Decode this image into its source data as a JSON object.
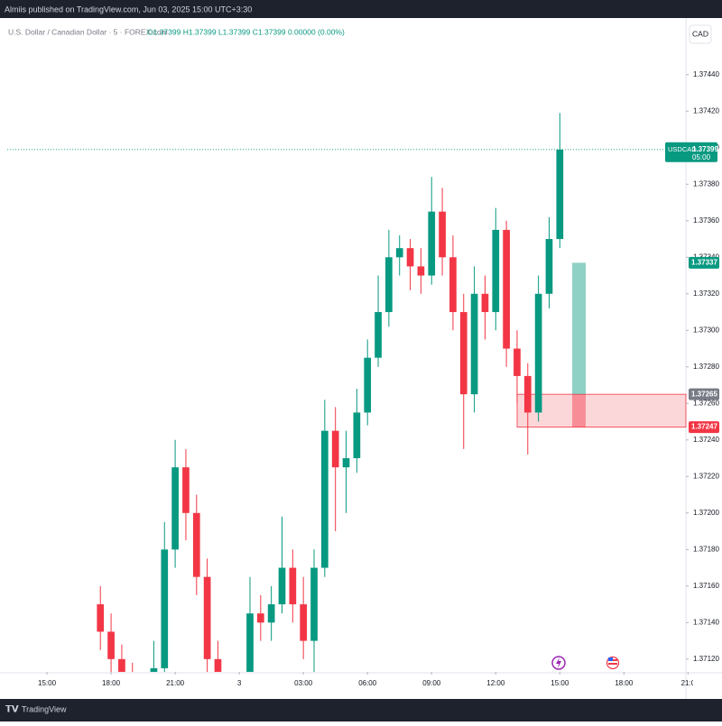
{
  "header": {
    "published": "Almiis published on TradingView.com, Jun 03, 2025 15:00 UTC+3:30"
  },
  "footer": {
    "brand": "TradingView"
  },
  "chart_data": {
    "type": "candlestick",
    "symbol_title": "U.S. Dollar / Canadian Dollar · 5 · FOREX.com",
    "ohlc_legend": "O1.37399 H1.37399 L1.37399 C1.37399 0.00000 (0.00%)",
    "currency": "CAD",
    "up_color": "#089981",
    "down_color": "#f23645",
    "x": [
      2.5,
      3,
      3.5,
      4,
      4.5,
      5,
      5.5,
      6,
      6.5,
      7,
      7.5,
      8,
      8.5,
      9,
      9.5,
      10,
      10.5,
      11,
      11.5,
      12,
      12.5,
      13,
      13.5,
      14,
      14.5,
      15,
      15.5,
      16,
      16.5,
      17,
      17.5,
      18,
      18.5,
      19,
      19.5,
      20,
      20.5,
      21,
      21.5,
      22,
      22.5,
      23,
      23.5,
      24
    ],
    "open": [
      1.3715,
      1.37135,
      1.3712,
      1.3711,
      1.37105,
      1.371,
      1.37115,
      1.3718,
      1.37225,
      1.372,
      1.37165,
      1.3712,
      1.37095,
      1.3709,
      1.371,
      1.37145,
      1.3714,
      1.3715,
      1.3717,
      1.3715,
      1.3713,
      1.3717,
      1.37245,
      1.37225,
      1.3723,
      1.37255,
      1.37285,
      1.3731,
      1.3734,
      1.37345,
      1.37335,
      1.3733,
      1.37365,
      1.3734,
      1.3731,
      1.37265,
      1.3732,
      1.3731,
      1.37355,
      1.3729,
      1.37275,
      1.37255,
      1.3732,
      1.3735
    ],
    "high": [
      1.3716,
      1.37145,
      1.37128,
      1.37118,
      1.37112,
      1.3713,
      1.37195,
      1.3724,
      1.37235,
      1.3721,
      1.37175,
      1.3713,
      1.37105,
      1.3711,
      1.37165,
      1.37155,
      1.3716,
      1.37198,
      1.3718,
      1.37165,
      1.3718,
      1.37262,
      1.37258,
      1.37245,
      1.37268,
      1.37295,
      1.3733,
      1.37355,
      1.37352,
      1.3735,
      1.37345,
      1.37384,
      1.37378,
      1.37352,
      1.3732,
      1.37335,
      1.3733,
      1.37367,
      1.3736,
      1.373,
      1.37282,
      1.3733,
      1.37362,
      1.37419
    ],
    "low": [
      1.37125,
      1.3711,
      1.371,
      1.37095,
      1.3709,
      1.37095,
      1.3711,
      1.3717,
      1.37185,
      1.37155,
      1.3711,
      1.37085,
      1.3708,
      1.37085,
      1.37095,
      1.3713,
      1.3713,
      1.37145,
      1.3714,
      1.3712,
      1.3711,
      1.37165,
      1.3719,
      1.372,
      1.37222,
      1.37248,
      1.3728,
      1.37302,
      1.3733,
      1.37322,
      1.3732,
      1.37325,
      1.3733,
      1.373,
      1.37235,
      1.37255,
      1.37295,
      1.373,
      1.3728,
      1.3726,
      1.37232,
      1.3725,
      1.37312,
      1.37345
    ],
    "close": [
      1.37135,
      1.3712,
      1.3711,
      1.37105,
      1.371,
      1.37115,
      1.3718,
      1.37225,
      1.372,
      1.37165,
      1.3712,
      1.37095,
      1.3709,
      1.371,
      1.37145,
      1.3714,
      1.3715,
      1.3717,
      1.3715,
      1.3713,
      1.3717,
      1.37245,
      1.37225,
      1.3723,
      1.37255,
      1.37285,
      1.3731,
      1.3734,
      1.37345,
      1.37335,
      1.3733,
      1.37365,
      1.3734,
      1.3731,
      1.37265,
      1.3732,
      1.3731,
      1.37355,
      1.3729,
      1.37275,
      1.37255,
      1.3732,
      1.3735,
      1.37399
    ],
    "xlim": [
      -1.86,
      29.9
    ],
    "xticks": [
      {
        "value": 0,
        "label": "15:00"
      },
      {
        "value": 3,
        "label": "18:00"
      },
      {
        "value": 6,
        "label": "21:00"
      },
      {
        "value": 9,
        "label": "3"
      },
      {
        "value": 12,
        "label": "03:00"
      },
      {
        "value": 15,
        "label": "06:00"
      },
      {
        "value": 18,
        "label": "09:00"
      },
      {
        "value": 21,
        "label": "12:00"
      },
      {
        "value": 24,
        "label": "15:00"
      },
      {
        "value": 27,
        "label": "18:00"
      },
      {
        "value": 30,
        "label": "21:0"
      }
    ],
    "ylim": [
      1.37113,
      1.3747
    ],
    "yticks": [
      {
        "value": 1.3712,
        "label": "1.37120"
      },
      {
        "value": 1.3714,
        "label": "1.37140"
      },
      {
        "value": 1.3716,
        "label": "1.37160"
      },
      {
        "value": 1.3718,
        "label": "1.37180"
      },
      {
        "value": 1.372,
        "label": "1.37200"
      },
      {
        "value": 1.3722,
        "label": "1.37220"
      },
      {
        "value": 1.3724,
        "label": "1.37240"
      },
      {
        "value": 1.3726,
        "label": "1.37260"
      },
      {
        "value": 1.3728,
        "label": "1.37280"
      },
      {
        "value": 1.373,
        "label": "1.37300"
      },
      {
        "value": 1.3732,
        "label": "1.37320"
      },
      {
        "value": 1.3734,
        "label": "1.37340"
      },
      {
        "value": 1.3736,
        "label": "1.37360"
      },
      {
        "value": 1.3738,
        "label": "1.37380"
      },
      {
        "value": 1.374,
        "label": "1.37400"
      },
      {
        "value": 1.3742,
        "label": "1.37420"
      },
      {
        "value": 1.3744,
        "label": "1.37440"
      }
    ],
    "last_price": {
      "symbol": "USDCAD",
      "value": 1.37399,
      "countdown": "05:00"
    },
    "position": {
      "target": 1.37337,
      "entry": 1.37265,
      "stop": 1.37247
    }
  }
}
